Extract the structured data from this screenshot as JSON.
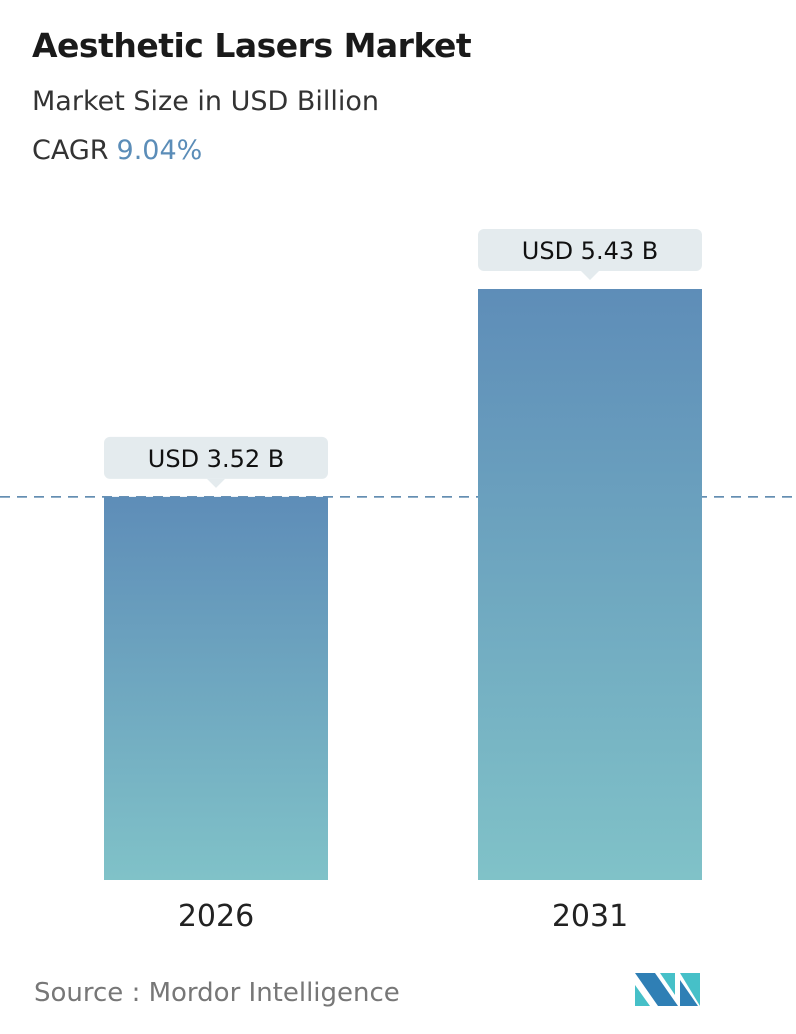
{
  "header": {
    "title": "Aesthetic Lasers Market",
    "subtitle": "Market Size in USD Billion",
    "cagr_label": "CAGR",
    "cagr_value": "9.04%"
  },
  "chart_data": {
    "type": "bar",
    "title": "Aesthetic Lasers Market",
    "categories": [
      "2026",
      "2031"
    ],
    "values": [
      3.52,
      5.43
    ],
    "data_labels": [
      "USD 3.52 B",
      "USD 5.43 B"
    ],
    "ylabel": "Market Size in USD Billion",
    "ylim": [
      0,
      5.43
    ],
    "reference_line": 3.52,
    "grid": false,
    "colors": {
      "bar_top": "#5e8db8",
      "bar_bottom": "#80c2c8",
      "label_bg": "#e4ebee",
      "dash": "#4f7fa8"
    }
  },
  "footer": {
    "source": "Source :  Mordor Intelligence",
    "logo_text": "Mordor Intelligence"
  }
}
